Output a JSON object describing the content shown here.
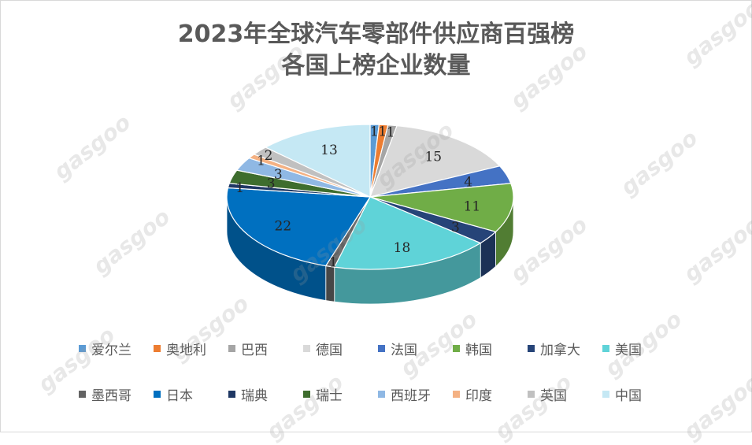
{
  "chart_data": {
    "type": "pie",
    "title_line1": "2023年全球汽车零部件供应商百强榜",
    "title_line2": "各国上榜企业数量",
    "categories": [
      "爱尔兰",
      "奥地利",
      "巴西",
      "德国",
      "法国",
      "韩国",
      "加拿大",
      "美国",
      "墨西哥",
      "日本",
      "瑞典",
      "瑞士",
      "西班牙",
      "印度",
      "英国",
      "中国"
    ],
    "values": [
      1,
      1,
      1,
      15,
      4,
      11,
      3,
      18,
      1,
      22,
      1,
      3,
      3,
      1,
      2,
      13
    ],
    "colors": [
      "#5b9bd5",
      "#ed7d31",
      "#a5a5a5",
      "#d9d9d9",
      "#4472c4",
      "#70ad47",
      "#264478",
      "#5fd3d8",
      "#636363",
      "#0070c0",
      "#1f3864",
      "#3e6d2e",
      "#8fb8e4",
      "#f4b183",
      "#c0c0c0",
      "#c5e8f4"
    ],
    "legend_position": "bottom"
  },
  "watermark": "gasgoo"
}
